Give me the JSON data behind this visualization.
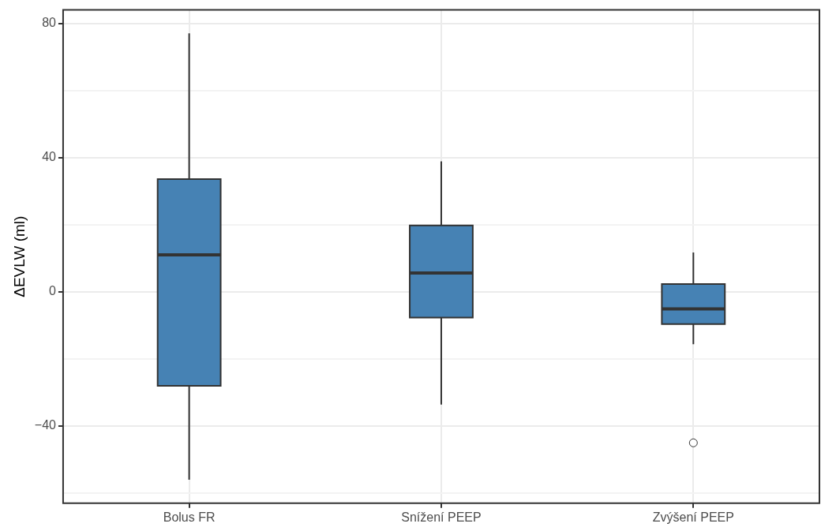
{
  "chart_data": {
    "type": "box",
    "ylabel": "ΔEVLW (ml)",
    "categories": [
      "Bolus FR",
      "Snížení PEEP",
      "Zvýšení PEEP"
    ],
    "boxes": [
      {
        "low": -56,
        "q1": -28,
        "median": 11,
        "q3": 33.6,
        "high": 77
      },
      {
        "low": -33.6,
        "q1": -7.7,
        "median": 5.6,
        "q3": 19.8,
        "high": 38.9
      },
      {
        "low": -15.6,
        "q1": -9.6,
        "median": -5.1,
        "q3": 2.3,
        "high": 11.7,
        "outliers": [
          -45
        ]
      }
    ],
    "color": "#4682b4",
    "ylim": [
      -63,
      84
    ],
    "yticks": [
      {
        "value": -60,
        "label": null
      },
      -40,
      {
        "value": -20,
        "label": null
      },
      0,
      {
        "value": 20,
        "label": null
      },
      40,
      {
        "value": 60,
        "label": null
      },
      80
    ],
    "grid": true,
    "legend": false
  }
}
